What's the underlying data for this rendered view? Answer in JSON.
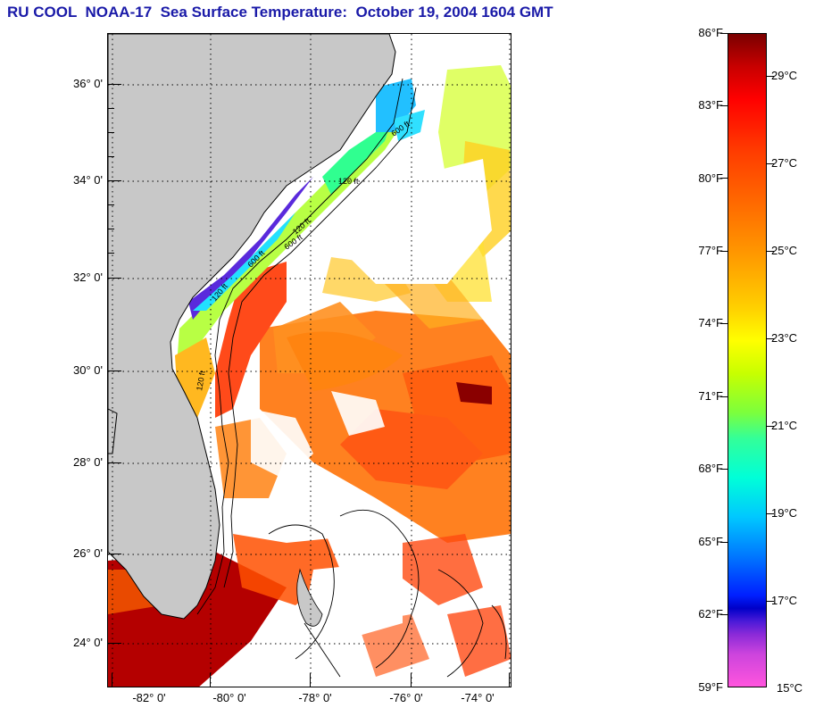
{
  "title": "RU COOL  NOAA-17  Sea Surface Temperature:  October 19, 2004 1604 GMT",
  "map": {
    "y_axis_labels": [
      "36° 0'",
      "34° 0'",
      "32° 0'",
      "30° 0'",
      "28° 0'",
      "26° 0'",
      "24° 0'"
    ],
    "x_axis_labels": [
      "-82° 0'",
      "-80° 0'",
      "-78° 0'",
      "-76° 0'",
      "-74° 0'"
    ],
    "contour_labels": [
      "120 ft",
      "120 ft",
      "600 ft",
      "600 ft",
      "120 ft",
      "600 ft",
      "120 ft"
    ],
    "colors": {
      "land": "#c8c8c8",
      "cloud": "#ffffff",
      "coast": "#000000"
    }
  },
  "colorbar": {
    "fahrenheit_labels": [
      "86°F",
      "83°F",
      "80°F",
      "77°F",
      "74°F",
      "71°F",
      "68°F",
      "65°F",
      "62°F",
      "59°F"
    ],
    "celsius_labels": [
      "29°C",
      "27°C",
      "25°C",
      "23°C",
      "21°C",
      "19°C",
      "17°C",
      "15°C"
    ]
  }
}
